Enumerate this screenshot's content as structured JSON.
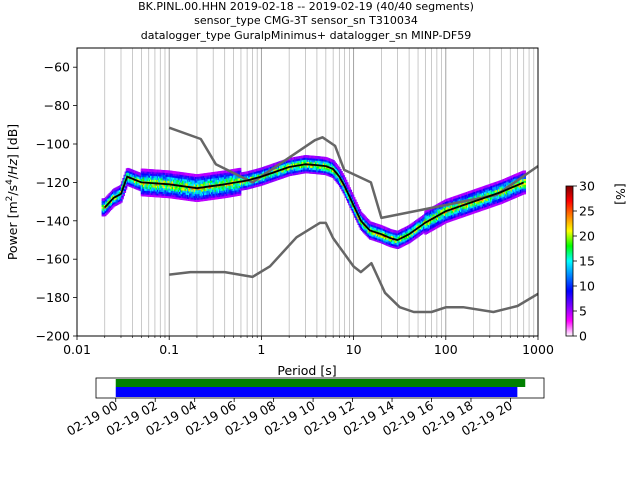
{
  "chart_data": {
    "type": "heatmap",
    "title": [
      "BK.PINL.00.HHN   2019-02-18 -- 2019-02-19  (40/40 segments)",
      "sensor_type CMG-3T sensor_sn T310034",
      "datalogger_type GuralpMinimus+ datalogger_sn MINP-DF59"
    ],
    "xlabel": "Period [s]",
    "ylabel": "Power [m²/s⁴/Hz] [dB]",
    "xscale": "log",
    "xlim": [
      0.01,
      1000
    ],
    "ylim": [
      -200,
      -50
    ],
    "x_ticks": [
      {
        "value": 0.01,
        "label": "0.01"
      },
      {
        "value": 0.1,
        "label": "0.1"
      },
      {
        "value": 1,
        "label": "1"
      },
      {
        "value": 10,
        "label": "10"
      },
      {
        "value": 100,
        "label": "100"
      },
      {
        "value": 1000,
        "label": "1000"
      }
    ],
    "y_ticks": [
      -60,
      -80,
      -100,
      -120,
      -140,
      -160,
      -180,
      -200
    ],
    "grid": "vertical period grid lines",
    "colorbar": {
      "label": "[%]",
      "min": 0,
      "max": 30,
      "ticks": [
        0,
        5,
        10,
        15,
        20,
        25,
        30
      ],
      "colors": [
        "#ffffff",
        "#ff00ff",
        "#7a00ff",
        "#0000ff",
        "#0080ff",
        "#00ffff",
        "#00ff00",
        "#ffff00",
        "#ff8000",
        "#ff0000",
        "#800000"
      ]
    },
    "series": [
      {
        "role": "noise-model-high",
        "color": "#666666",
        "x": [
          0.1,
          0.22,
          0.32,
          0.8,
          3.8,
          4.6,
          6.3,
          7.9,
          15.4,
          20,
          354.8,
          1000
        ],
        "y": [
          -91.5,
          -97.4,
          -110.5,
          -120,
          -98,
          -96.5,
          -101,
          -113.5,
          -120,
          -138.5,
          -126.5,
          -111.5
        ]
      },
      {
        "role": "noise-model-low",
        "color": "#666666",
        "x": [
          0.1,
          0.17,
          0.4,
          0.8,
          1.24,
          2.4,
          4.3,
          5.0,
          6.0,
          10,
          12,
          15.6,
          21.9,
          31.6,
          45,
          70,
          101,
          154,
          328,
          600,
          1000
        ],
        "y": [
          -168,
          -166.7,
          -166.7,
          -169.2,
          -163.7,
          -148.6,
          -141.1,
          -141.1,
          -149,
          -163.8,
          -166.7,
          -162.1,
          -177.5,
          -185,
          -187.5,
          -187.5,
          -185,
          -185,
          -187.5,
          -184.4,
          -178
        ]
      },
      {
        "role": "mean",
        "color": "#000000",
        "x": [
          0.02,
          0.025,
          0.03,
          0.035,
          0.05,
          0.1,
          0.2,
          0.4,
          0.7,
          1,
          2,
          3,
          4,
          5,
          6,
          7,
          8,
          10,
          12,
          15,
          20,
          25,
          30,
          40,
          60,
          100,
          200,
          400,
          700
        ],
        "y": [
          -133,
          -128,
          -126,
          -117,
          -120,
          -121,
          -123,
          -121,
          -119,
          -117,
          -112,
          -110.5,
          -111,
          -111.5,
          -113,
          -117,
          -122,
          -132,
          -140,
          -145,
          -147,
          -149,
          -150,
          -147,
          -141,
          -135,
          -130,
          -125,
          -120
        ]
      }
    ],
    "time_axis": {
      "tick_labels": [
        "02-19 00",
        "02-19 02",
        "02-19 04",
        "02-19 06",
        "02-19 08",
        "02-19 10",
        "02-19 12",
        "02-19 14",
        "02-19 16",
        "02-19 18",
        "02-19 20"
      ],
      "range_hours": [
        -1,
        21.7
      ],
      "coverage": [
        {
          "label": "data",
          "color": "#008000",
          "start_hours": 0,
          "end_hours": 20.75
        },
        {
          "label": "segments",
          "color": "#0000ff",
          "start_hours": 0,
          "end_hours": 20.35
        }
      ]
    }
  }
}
